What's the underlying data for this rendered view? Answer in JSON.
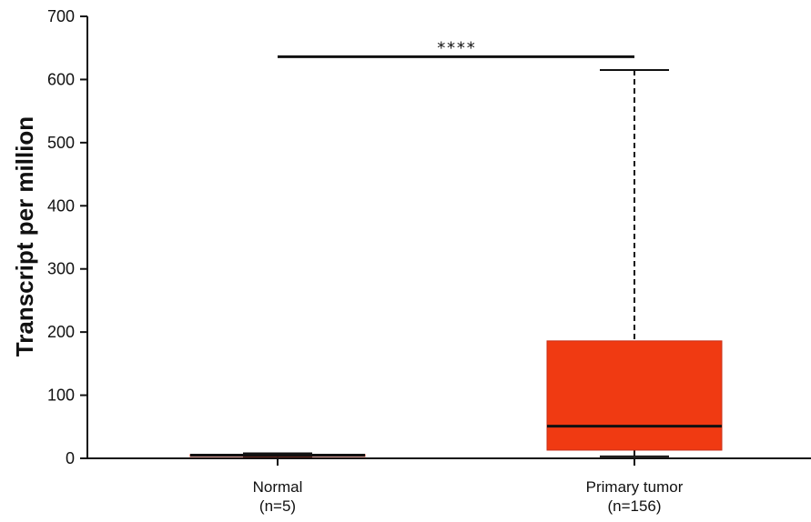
{
  "chart_data": {
    "type": "box",
    "ylabel": "Transcript per million",
    "ylim": [
      0,
      700
    ],
    "yticks": [
      0,
      100,
      200,
      300,
      400,
      500,
      600,
      700
    ],
    "grid": false,
    "categories": [
      {
        "name": "Normal",
        "n": "(n=5)",
        "color": "#f03a12",
        "whisker_low": 1,
        "q1": 3,
        "median": 5,
        "q3": 6,
        "whisker_high": 8
      },
      {
        "name": "Primary tumor",
        "n": "(n=156)",
        "color": "#f03a12",
        "whisker_low": 3,
        "q1": 13,
        "median": 51,
        "q3": 186,
        "whisker_high": 615
      }
    ],
    "significance": {
      "label": "****",
      "y": 636,
      "from": 0,
      "to": 1
    }
  }
}
